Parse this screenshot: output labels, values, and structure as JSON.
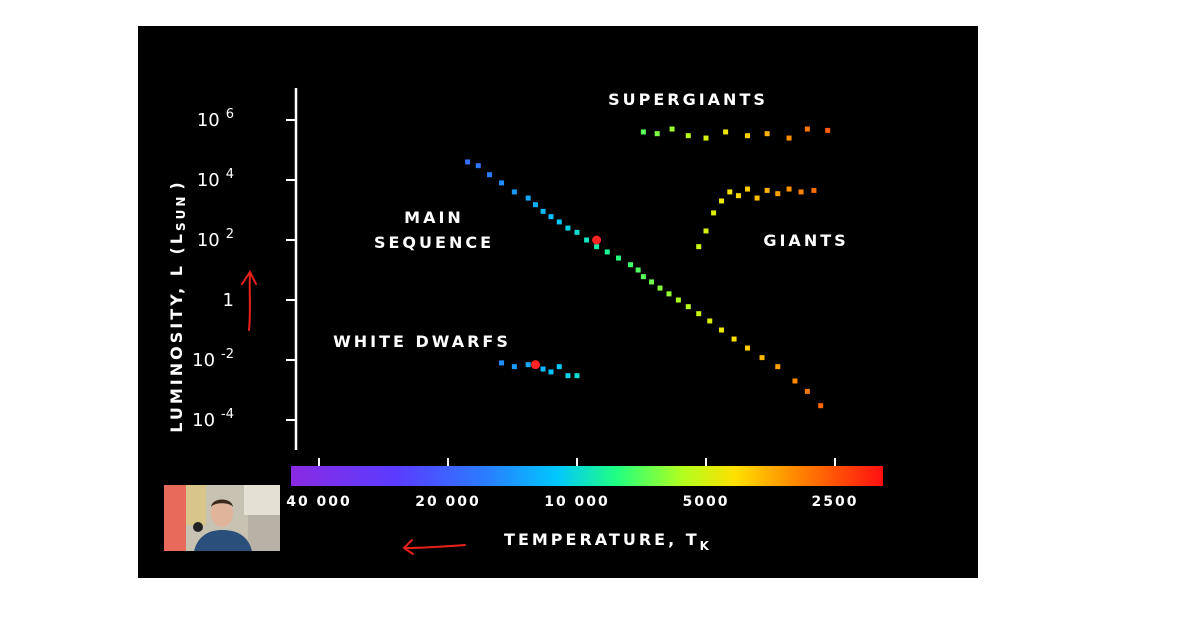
{
  "colors": {
    "background": "#000000",
    "axis": "#ffffff",
    "annotation_arrow": "#e8201a",
    "dot_highlight": "#ff2222"
  },
  "webcam": {
    "icon": "presenter-webcam-icon"
  },
  "chart_data": {
    "type": "scatter",
    "title": "",
    "xlabel": "Temperature, T",
    "xlabel_sub": "K",
    "ylabel": "Luminosity, L (L",
    "ylabel_sub": "SUN",
    "ylabel_close": ")",
    "x_scale": "log (reversed, temperature decreases to the right)",
    "y_scale": "log",
    "xlim": [
      50000,
      2000
    ],
    "ylim": [
      5e-05,
      2000000
    ],
    "grid": false,
    "colorbar": "rainbow (violet at hot end, red at cool end)",
    "x_ticks": [
      {
        "value": 40000,
        "label": "40 000"
      },
      {
        "value": 20000,
        "label": "20 000"
      },
      {
        "value": 10000,
        "label": "10 000"
      },
      {
        "value": 5000,
        "label": "5000"
      },
      {
        "value": 2500,
        "label": "2500"
      }
    ],
    "y_ticks": [
      {
        "value": 1000000,
        "base": "10",
        "exp": "6"
      },
      {
        "value": 10000,
        "base": "10",
        "exp": "4"
      },
      {
        "value": 100,
        "base": "10",
        "exp": "2"
      },
      {
        "value": 1,
        "base": "1",
        "exp": ""
      },
      {
        "value": 0.01,
        "base": "10",
        "exp": "-2"
      },
      {
        "value": 0.0001,
        "base": "10",
        "exp": "-4"
      }
    ],
    "annotations": [
      {
        "name": "supergiants",
        "lines": [
          "Supergiants"
        ]
      },
      {
        "name": "giants",
        "lines": [
          "Giants"
        ]
      },
      {
        "name": "main-sequence",
        "lines": [
          "Main",
          "Sequence"
        ]
      },
      {
        "name": "white-dwarfs",
        "lines": [
          "White Dwarfs"
        ]
      }
    ],
    "series": [
      {
        "name": "Main Sequence",
        "points": [
          [
            18000,
            40000
          ],
          [
            17000,
            30000
          ],
          [
            16000,
            15000
          ],
          [
            15000,
            8000
          ],
          [
            14000,
            4000
          ],
          [
            13000,
            2500
          ],
          [
            12500,
            1500
          ],
          [
            12000,
            900
          ],
          [
            11500,
            600
          ],
          [
            11000,
            400
          ],
          [
            10500,
            250
          ],
          [
            10000,
            180
          ],
          [
            9500,
            100
          ],
          [
            9000,
            60
          ],
          [
            8500,
            40
          ],
          [
            8000,
            25
          ],
          [
            7500,
            15
          ],
          [
            7200,
            10
          ],
          [
            7000,
            6
          ],
          [
            6700,
            4
          ],
          [
            6400,
            2.5
          ],
          [
            6100,
            1.6
          ],
          [
            5800,
            1
          ],
          [
            5500,
            0.6
          ],
          [
            5200,
            0.35
          ],
          [
            4900,
            0.2
          ],
          [
            4600,
            0.1
          ],
          [
            4300,
            0.05
          ],
          [
            4000,
            0.025
          ],
          [
            3700,
            0.012
          ],
          [
            3400,
            0.006
          ],
          [
            3100,
            0.002
          ],
          [
            2900,
            0.0009
          ],
          [
            2700,
            0.0003
          ]
        ],
        "highlight": [
          9000,
          100
        ]
      },
      {
        "name": "Supergiants",
        "points": [
          [
            7000,
            400000
          ],
          [
            6500,
            350000
          ],
          [
            6000,
            500000
          ],
          [
            5500,
            300000
          ],
          [
            5000,
            250000
          ],
          [
            4500,
            400000
          ],
          [
            4000,
            300000
          ],
          [
            3600,
            350000
          ],
          [
            3200,
            250000
          ],
          [
            2900,
            500000
          ],
          [
            2600,
            450000
          ]
        ]
      },
      {
        "name": "Giants",
        "points": [
          [
            5200,
            60
          ],
          [
            5000,
            200
          ],
          [
            4800,
            800
          ],
          [
            4600,
            2000
          ],
          [
            4400,
            4000
          ],
          [
            4200,
            3000
          ],
          [
            4000,
            5000
          ],
          [
            3800,
            2500
          ],
          [
            3600,
            4500
          ],
          [
            3400,
            3500
          ],
          [
            3200,
            5000
          ],
          [
            3000,
            4000
          ],
          [
            2800,
            4500
          ]
        ]
      },
      {
        "name": "White Dwarfs",
        "points": [
          [
            15000,
            0.008
          ],
          [
            14000,
            0.006
          ],
          [
            13000,
            0.007
          ],
          [
            12000,
            0.005
          ],
          [
            11500,
            0.004
          ],
          [
            11000,
            0.006
          ],
          [
            10500,
            0.003
          ],
          [
            10000,
            0.003
          ]
        ],
        "highlight": [
          12500,
          0.007
        ]
      }
    ]
  }
}
